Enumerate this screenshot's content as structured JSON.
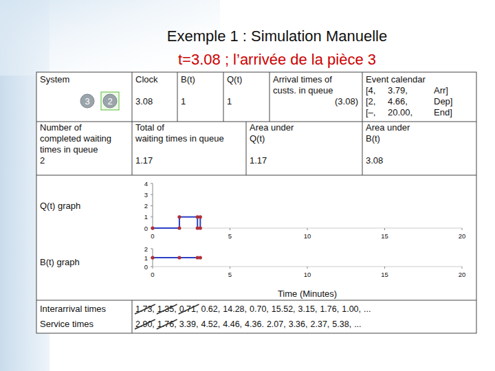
{
  "slide": {
    "title": "Exemple 1 : Simulation Manuelle",
    "subtitle": "t=3.08 ; l’arrivée de la pièce 3"
  },
  "state": {
    "system": {
      "header": "System",
      "queue": [
        "3"
      ],
      "server": "2"
    },
    "clock": {
      "header": "Clock",
      "value": "3.08"
    },
    "busy": {
      "header": "B(t)",
      "value": "1"
    },
    "queue_length": {
      "header": "Q(t)",
      "value": "1"
    },
    "arrival_times": {
      "header": [
        "Arrival times of",
        "custs. in queue"
      ],
      "values": [
        "(3.08)"
      ]
    },
    "event_calendar": {
      "header": "Event calendar",
      "rows": [
        [
          "[4,",
          "3.79,",
          "Arr]"
        ],
        [
          "[2,",
          "4.66,",
          "Dep]"
        ],
        [
          "[–,",
          "20.00,",
          "End]"
        ]
      ]
    }
  },
  "statistics": [
    {
      "header": [
        "Number of",
        "completed waiting",
        "times in queue"
      ],
      "value": "2"
    },
    {
      "header": [
        "Total of",
        "waiting times in queue"
      ],
      "value": "1.17"
    },
    {
      "header": [
        "Area under",
        "Q(t)"
      ],
      "value": "1.17"
    },
    {
      "header": [
        "Area under",
        "B(t)"
      ],
      "value": "3.08"
    }
  ],
  "chart_data": [
    {
      "type": "line",
      "title": "Q(t) graph",
      "x": [
        0,
        1.73,
        1.73,
        2.9,
        2.9,
        3.08,
        3.08
      ],
      "values": [
        0,
        0,
        1,
        1,
        0,
        0,
        1
      ],
      "color": "#2b3fc4",
      "marker": "circle",
      "line_style": "step",
      "xlim": [
        0,
        20
      ],
      "ylim": [
        0,
        4
      ],
      "xticks": [
        0,
        5,
        10,
        15,
        20
      ],
      "yticks": [
        0,
        1,
        2,
        3,
        4
      ],
      "grid": false
    },
    {
      "type": "line",
      "title": "B(t) graph",
      "x": [
        0,
        1.73,
        2.9,
        3.08
      ],
      "values": [
        1,
        1,
        1,
        1
      ],
      "color": "#2b3fc4",
      "marker": "circle",
      "line_style": "step",
      "x_label": "Time (Minutes)",
      "xlim": [
        0,
        20
      ],
      "ylim": [
        0,
        2
      ],
      "xticks": [
        0,
        5,
        10,
        15,
        20
      ],
      "yticks": [
        0,
        1,
        2
      ],
      "grid": false
    }
  ],
  "inputs": [
    {
      "label": "Interarrival times",
      "crossed_out": 3,
      "items": [
        "1.73,",
        "1.35,",
        "0.71,",
        "0.62,",
        "14.28,",
        "0.70,",
        "15.52,",
        "3.15,",
        "1.76,",
        "1.00,",
        "..."
      ]
    },
    {
      "label": "Service times",
      "crossed_out": 2,
      "items": [
        "2.90,",
        "1.76,",
        "3.39,",
        "4.52,",
        "4.46,",
        "4.36.",
        "2.07,",
        "3.36,",
        "2.37,",
        "5.38,",
        "..."
      ]
    }
  ]
}
